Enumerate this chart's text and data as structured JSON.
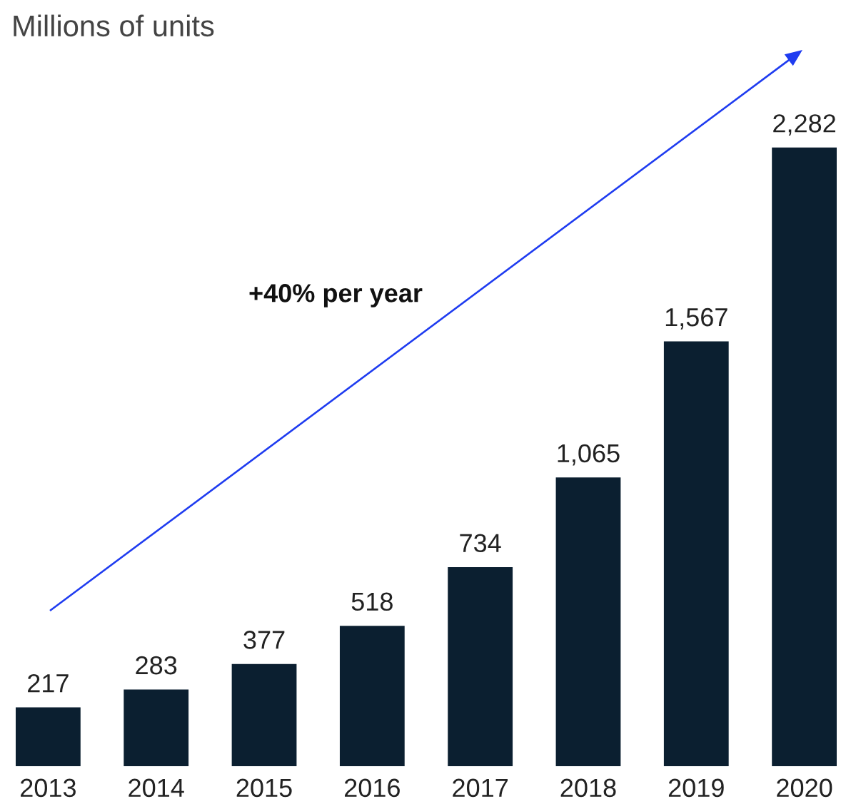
{
  "chart_data": {
    "type": "bar",
    "title": "Millions of units",
    "categories": [
      "2013",
      "2014",
      "2015",
      "2016",
      "2017",
      "2018",
      "2019",
      "2020"
    ],
    "values": [
      217,
      283,
      377,
      518,
      734,
      1065,
      1567,
      2282
    ],
    "color": "#0b1f30",
    "value_labels": [
      "217",
      "283",
      "377",
      "518",
      "734",
      "1,065",
      "1,567",
      "2,282"
    ],
    "annotations": [
      "+40% per year"
    ]
  }
}
